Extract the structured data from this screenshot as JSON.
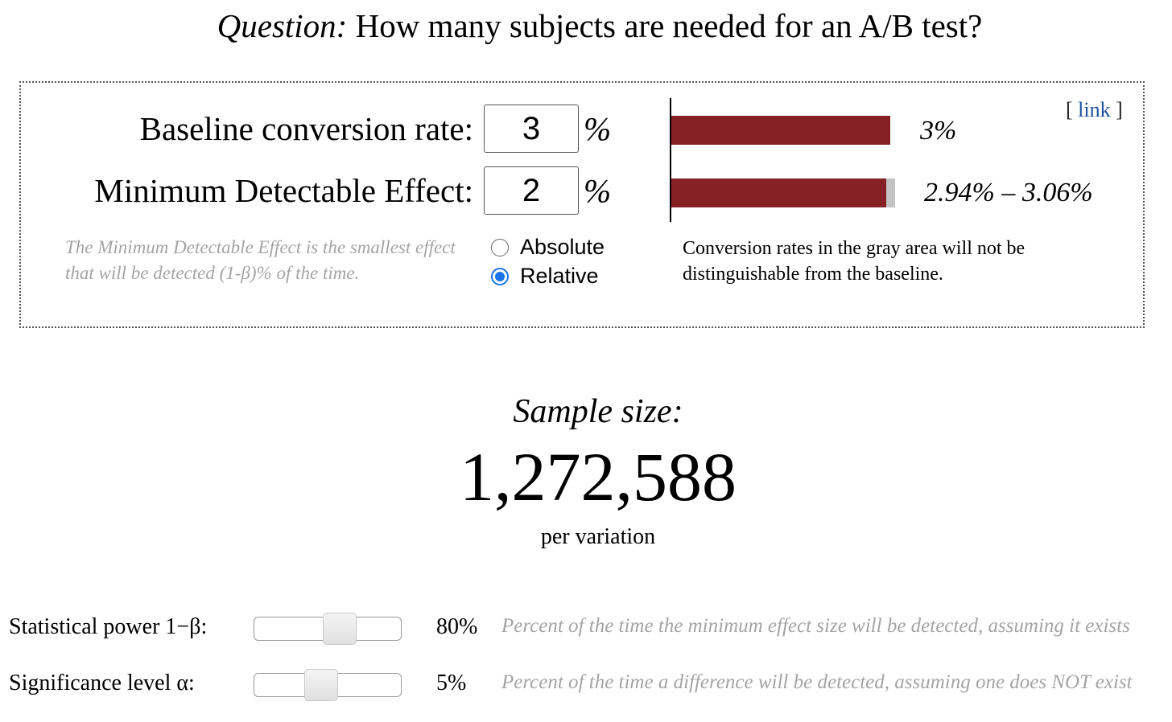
{
  "header": {
    "question_label": "Question:",
    "question_text": " How many subjects are needed for an A/B test?"
  },
  "inputs": {
    "baseline": {
      "label": "Baseline conversion rate:",
      "value": "3",
      "unit": "%"
    },
    "mde": {
      "label": "Minimum Detectable Effect:",
      "value": "2",
      "unit": "%"
    },
    "mde_help": "The Minimum Detectable Effect is the smallest effect that will be detected (1-β)% of the time.",
    "mode_options": [
      {
        "label": "Absolute",
        "selected": false
      },
      {
        "label": "Relative",
        "selected": true
      }
    ]
  },
  "link": {
    "open": "[ ",
    "text": "link",
    "close": " ]"
  },
  "visual": {
    "baseline_label": "3%",
    "range_label": "2.94% – 3.06%",
    "note": "Conversion rates in the gray area will not be distinguishable from the baseline.",
    "bar_color": "#862024",
    "gray_color": "#c4c4c4"
  },
  "result": {
    "title": "Sample size:",
    "value": "1,272,588",
    "unit": "per variation"
  },
  "settings": [
    {
      "label": "Statistical power 1−β:",
      "value": "80%",
      "fraction": 0.57,
      "description": "Percent of the time the minimum effect size will be detected, assuming it exists"
    },
    {
      "label": "Significance level α:",
      "value": "5%",
      "fraction": 0.45,
      "description": "Percent of the time a difference will be detected, assuming one does NOT exist"
    }
  ]
}
